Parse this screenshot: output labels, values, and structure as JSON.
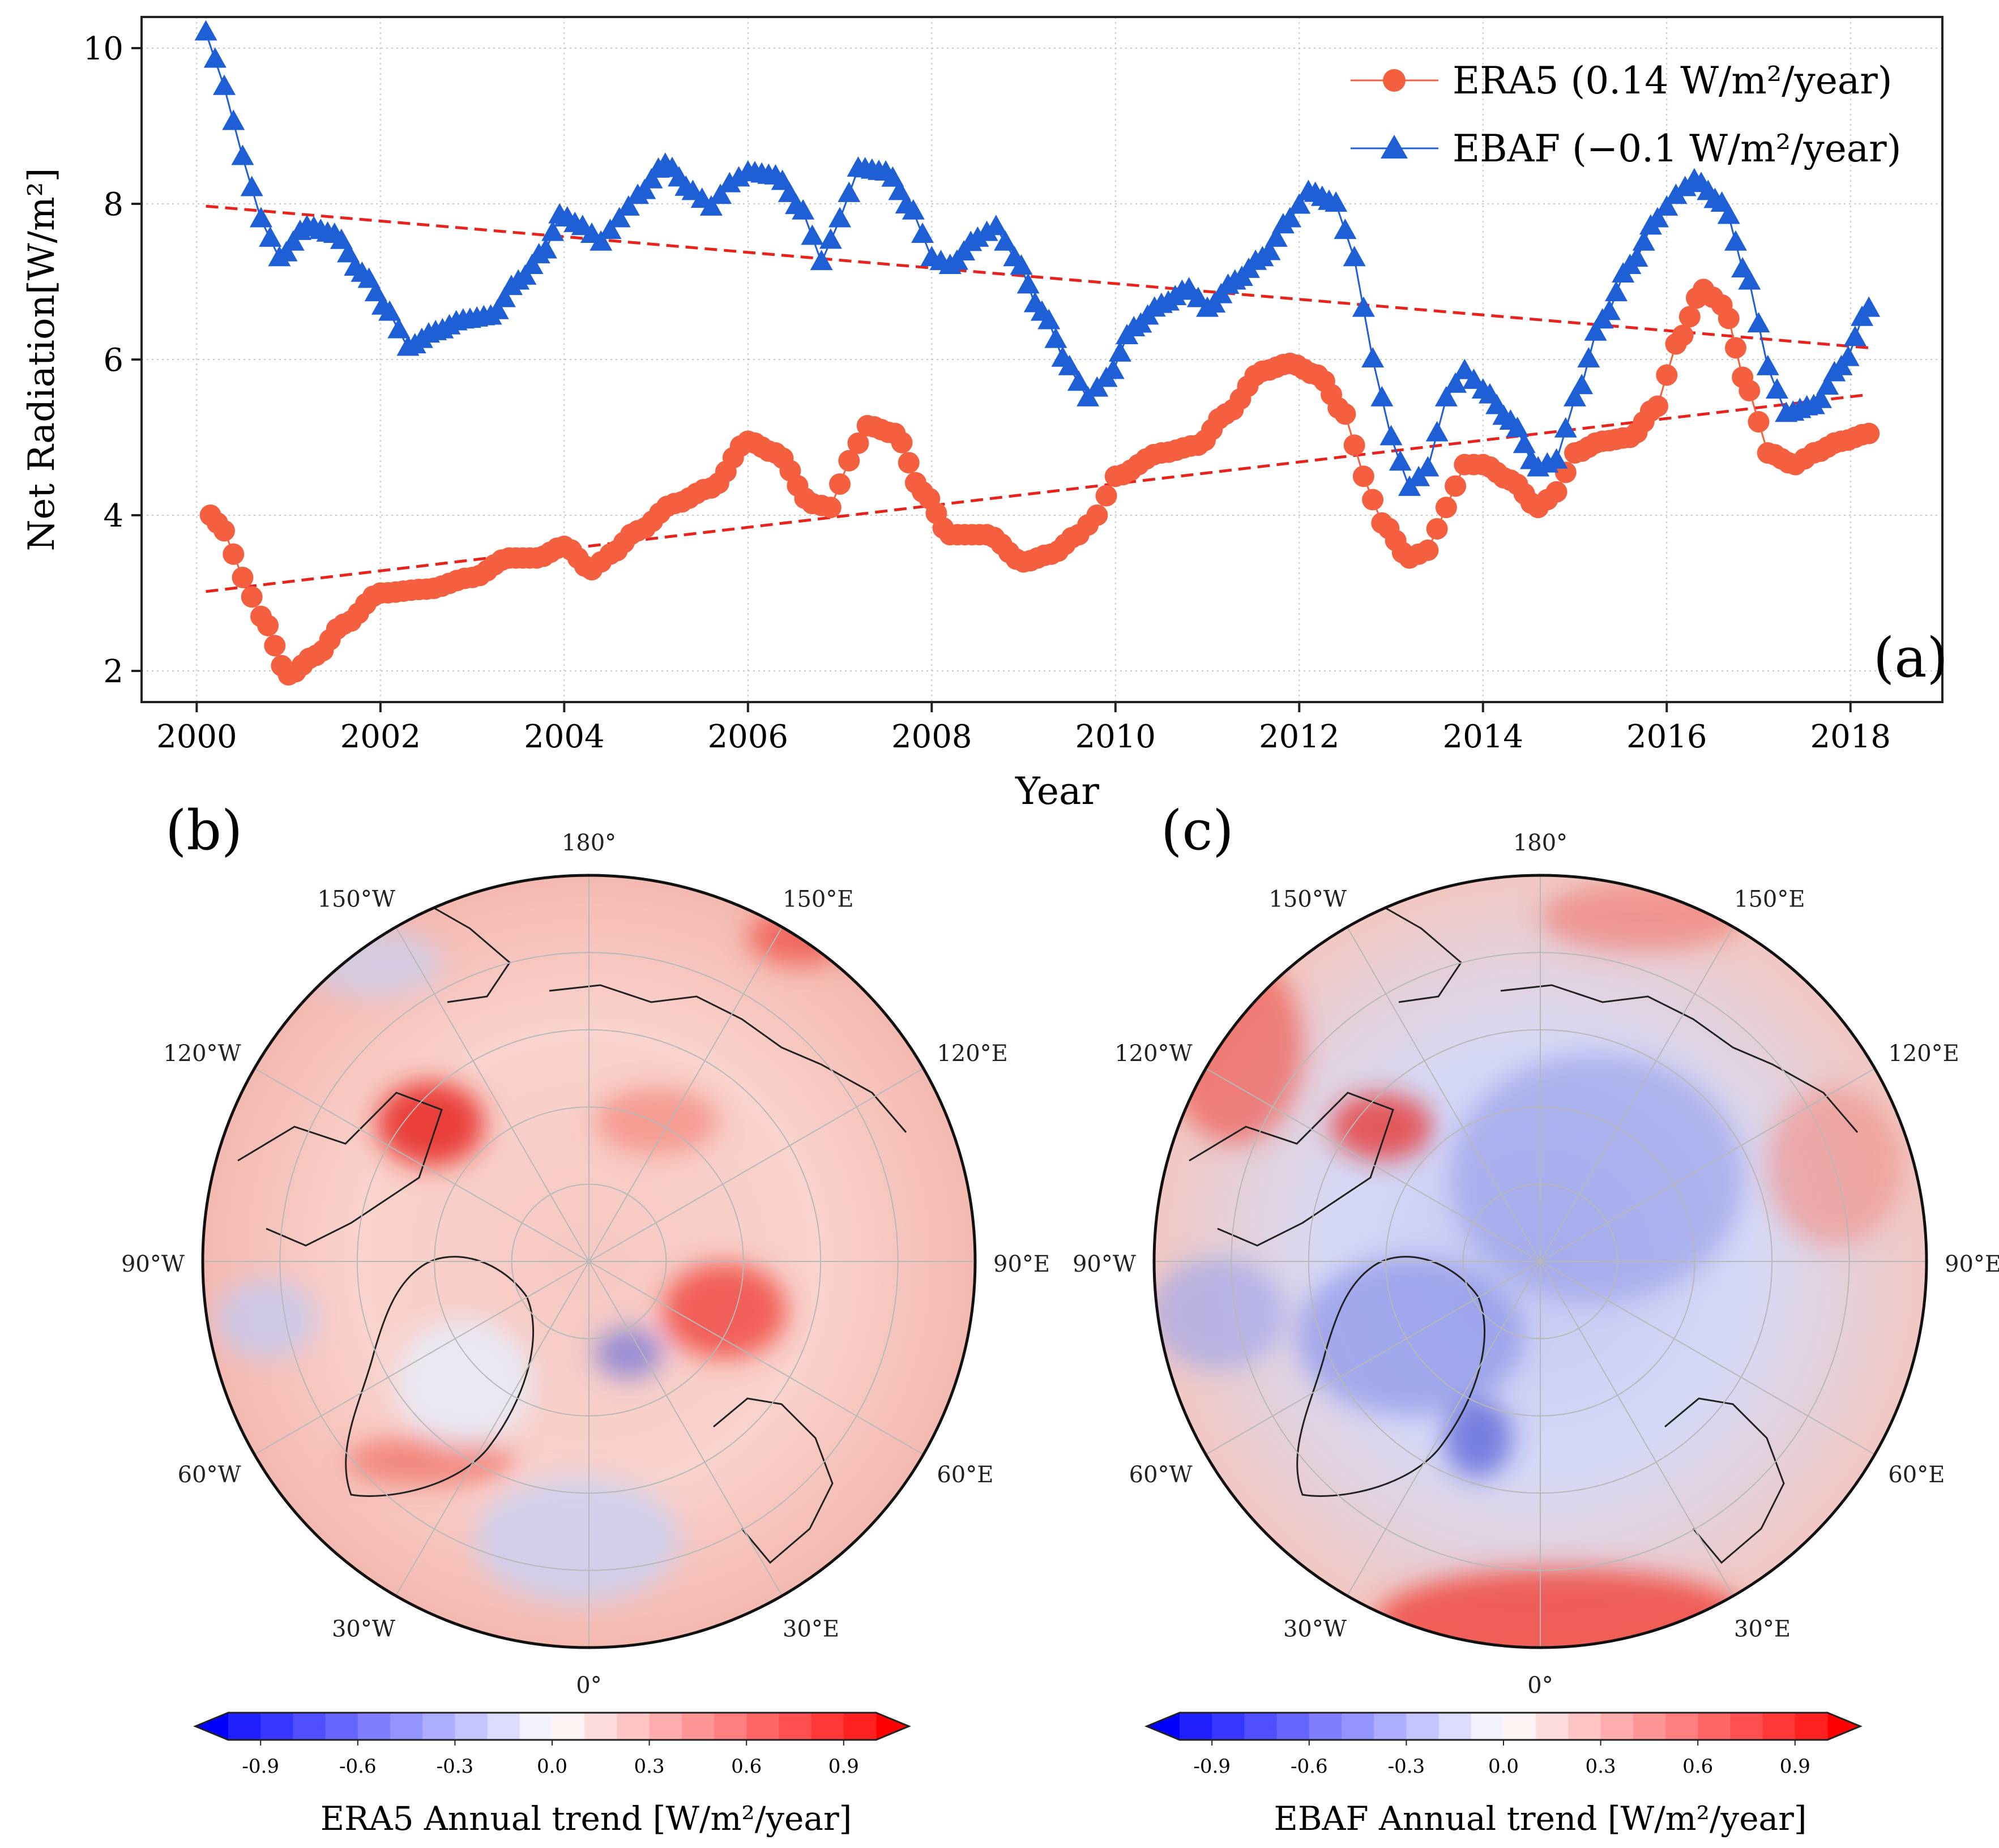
{
  "chart_data": [
    {
      "type": "line",
      "panel_label": "(a)",
      "xlabel": "Year",
      "ylabel": "Net Radiation[W/m²]",
      "xlim": [
        1999.4,
        2019.0
      ],
      "ylim": [
        1.6,
        10.4
      ],
      "x_ticks": [
        2000,
        2002,
        2004,
        2006,
        2008,
        2010,
        2012,
        2014,
        2016,
        2018
      ],
      "y_ticks": [
        2,
        4,
        6,
        8,
        10
      ],
      "grid": true,
      "legend_position": "top-right",
      "series": [
        {
          "name": "ERA5 (0.14 W/m²/year)",
          "color": "#f4603f",
          "marker": "circle",
          "anchors": [
            [
              2000.15,
              4.0
            ],
            [
              2000.3,
              3.8
            ],
            [
              2000.5,
              3.2
            ],
            [
              2000.7,
              2.7
            ],
            [
              2001.0,
              1.95
            ],
            [
              2001.3,
              2.2
            ],
            [
              2001.6,
              2.6
            ],
            [
              2002.0,
              3.0
            ],
            [
              2002.5,
              3.05
            ],
            [
              2003.0,
              3.2
            ],
            [
              2003.4,
              3.45
            ],
            [
              2003.7,
              3.45
            ],
            [
              2004.0,
              3.6
            ],
            [
              2004.3,
              3.3
            ],
            [
              2004.5,
              3.5
            ],
            [
              2004.8,
              3.8
            ],
            [
              2005.2,
              4.15
            ],
            [
              2005.6,
              4.35
            ],
            [
              2006.0,
              4.95
            ],
            [
              2006.3,
              4.8
            ],
            [
              2006.7,
              4.15
            ],
            [
              2006.9,
              4.1
            ],
            [
              2007.1,
              4.7
            ],
            [
              2007.3,
              5.15
            ],
            [
              2007.6,
              5.05
            ],
            [
              2007.9,
              4.3
            ],
            [
              2008.2,
              3.75
            ],
            [
              2008.6,
              3.75
            ],
            [
              2009.0,
              3.4
            ],
            [
              2009.3,
              3.5
            ],
            [
              2009.6,
              3.75
            ],
            [
              2009.8,
              4.0
            ],
            [
              2010.0,
              4.5
            ],
            [
              2010.5,
              4.8
            ],
            [
              2010.9,
              4.9
            ],
            [
              2011.2,
              5.3
            ],
            [
              2011.6,
              5.85
            ],
            [
              2011.9,
              5.95
            ],
            [
              2012.2,
              5.8
            ],
            [
              2012.5,
              5.3
            ],
            [
              2012.7,
              4.5
            ],
            [
              2012.9,
              3.9
            ],
            [
              2013.2,
              3.45
            ],
            [
              2013.4,
              3.55
            ],
            [
              2013.6,
              4.1
            ],
            [
              2013.8,
              4.65
            ],
            [
              2014.0,
              4.65
            ],
            [
              2014.3,
              4.45
            ],
            [
              2014.6,
              4.1
            ],
            [
              2014.8,
              4.3
            ],
            [
              2015.0,
              4.8
            ],
            [
              2015.3,
              4.95
            ],
            [
              2015.6,
              5.0
            ],
            [
              2015.9,
              5.4
            ],
            [
              2016.1,
              6.2
            ],
            [
              2016.4,
              6.9
            ],
            [
              2016.6,
              6.7
            ],
            [
              2016.9,
              5.6
            ],
            [
              2017.1,
              4.8
            ],
            [
              2017.4,
              4.65
            ],
            [
              2017.6,
              4.8
            ],
            [
              2017.9,
              4.95
            ],
            [
              2018.2,
              5.05
            ]
          ]
        },
        {
          "name": "EBAF (−0.1 W/m²/year)",
          "color": "#1f5fd6",
          "marker": "triangle",
          "anchors": [
            [
              2000.1,
              10.2
            ],
            [
              2000.3,
              9.5
            ],
            [
              2000.5,
              8.6
            ],
            [
              2000.7,
              7.8
            ],
            [
              2000.9,
              7.3
            ],
            [
              2001.2,
              7.7
            ],
            [
              2001.5,
              7.6
            ],
            [
              2001.8,
              7.1
            ],
            [
              2002.1,
              6.6
            ],
            [
              2002.3,
              6.15
            ],
            [
              2002.6,
              6.35
            ],
            [
              2002.9,
              6.5
            ],
            [
              2003.2,
              6.55
            ],
            [
              2003.5,
              7.0
            ],
            [
              2003.8,
              7.4
            ],
            [
              2003.95,
              7.85
            ],
            [
              2004.2,
              7.7
            ],
            [
              2004.4,
              7.5
            ],
            [
              2004.6,
              7.8
            ],
            [
              2004.8,
              8.1
            ],
            [
              2005.1,
              8.5
            ],
            [
              2005.4,
              8.15
            ],
            [
              2005.6,
              7.95
            ],
            [
              2005.8,
              8.25
            ],
            [
              2006.0,
              8.4
            ],
            [
              2006.3,
              8.35
            ],
            [
              2006.6,
              7.9
            ],
            [
              2006.8,
              7.25
            ],
            [
              2007.0,
              7.8
            ],
            [
              2007.2,
              8.45
            ],
            [
              2007.5,
              8.4
            ],
            [
              2007.8,
              7.9
            ],
            [
              2008.0,
              7.3
            ],
            [
              2008.2,
              7.2
            ],
            [
              2008.5,
              7.55
            ],
            [
              2008.7,
              7.7
            ],
            [
              2008.9,
              7.3
            ],
            [
              2009.2,
              6.6
            ],
            [
              2009.5,
              5.9
            ],
            [
              2009.7,
              5.5
            ],
            [
              2009.9,
              5.75
            ],
            [
              2010.2,
              6.4
            ],
            [
              2010.5,
              6.7
            ],
            [
              2010.8,
              6.9
            ],
            [
              2011.0,
              6.65
            ],
            [
              2011.3,
              7.0
            ],
            [
              2011.6,
              7.3
            ],
            [
              2011.9,
              7.8
            ],
            [
              2012.1,
              8.15
            ],
            [
              2012.4,
              8.0
            ],
            [
              2012.6,
              7.3
            ],
            [
              2012.8,
              6.0
            ],
            [
              2013.0,
              5.0
            ],
            [
              2013.2,
              4.35
            ],
            [
              2013.4,
              4.6
            ],
            [
              2013.6,
              5.5
            ],
            [
              2013.8,
              5.85
            ],
            [
              2014.0,
              5.6
            ],
            [
              2014.3,
              5.2
            ],
            [
              2014.6,
              4.6
            ],
            [
              2014.8,
              4.7
            ],
            [
              2015.0,
              5.5
            ],
            [
              2015.3,
              6.5
            ],
            [
              2015.6,
              7.2
            ],
            [
              2015.9,
              7.8
            ],
            [
              2016.1,
              8.1
            ],
            [
              2016.3,
              8.3
            ],
            [
              2016.6,
              8.0
            ],
            [
              2016.9,
              7.0
            ],
            [
              2017.1,
              5.9
            ],
            [
              2017.3,
              5.3
            ],
            [
              2017.6,
              5.4
            ],
            [
              2017.9,
              5.9
            ],
            [
              2018.2,
              6.65
            ]
          ]
        },
        {
          "name": "",
          "color": "#e8231c",
          "style": "dashed",
          "x": [
            2000.1,
            2018.2
          ],
          "y": [
            7.97,
            6.15
          ]
        },
        {
          "name": "",
          "color": "#e8231c",
          "style": "dashed",
          "x": [
            2000.1,
            2018.2
          ],
          "y": [
            3.02,
            5.55
          ]
        }
      ]
    },
    {
      "type": "heatmap",
      "panel_label": "(b)",
      "projection": "north polar stereographic",
      "longitude_labels": [
        "180°",
        "150°E",
        "120°E",
        "90°E",
        "60°E",
        "30°E",
        "0°",
        "30°W",
        "60°W",
        "90°W",
        "120°W",
        "150°W"
      ],
      "colorbar_ticks": [
        "-0.9",
        "-0.6",
        "-0.3",
        "0.0",
        "0.3",
        "0.6",
        "0.9"
      ],
      "colorbar_range": [
        -1.0,
        1.0
      ],
      "colorbar_label": "ERA5 Annual trend [W/m²/year]"
    },
    {
      "type": "heatmap",
      "panel_label": "(c)",
      "projection": "north polar stereographic",
      "longitude_labels": [
        "180°",
        "150°E",
        "120°E",
        "90°E",
        "60°E",
        "30°E",
        "0°",
        "30°W",
        "60°W",
        "90°W",
        "120°W",
        "150°W"
      ],
      "colorbar_ticks": [
        "-0.9",
        "-0.6",
        "-0.3",
        "0.0",
        "0.3",
        "0.6",
        "0.9"
      ],
      "colorbar_range": [
        -1.0,
        1.0
      ],
      "colorbar_label": "EBAF Annual trend [W/m²/year]"
    }
  ],
  "colors": {
    "warm": "#ff0000",
    "cold": "#0000ff",
    "axis": "#222222",
    "grid": "#c7c7c7"
  }
}
